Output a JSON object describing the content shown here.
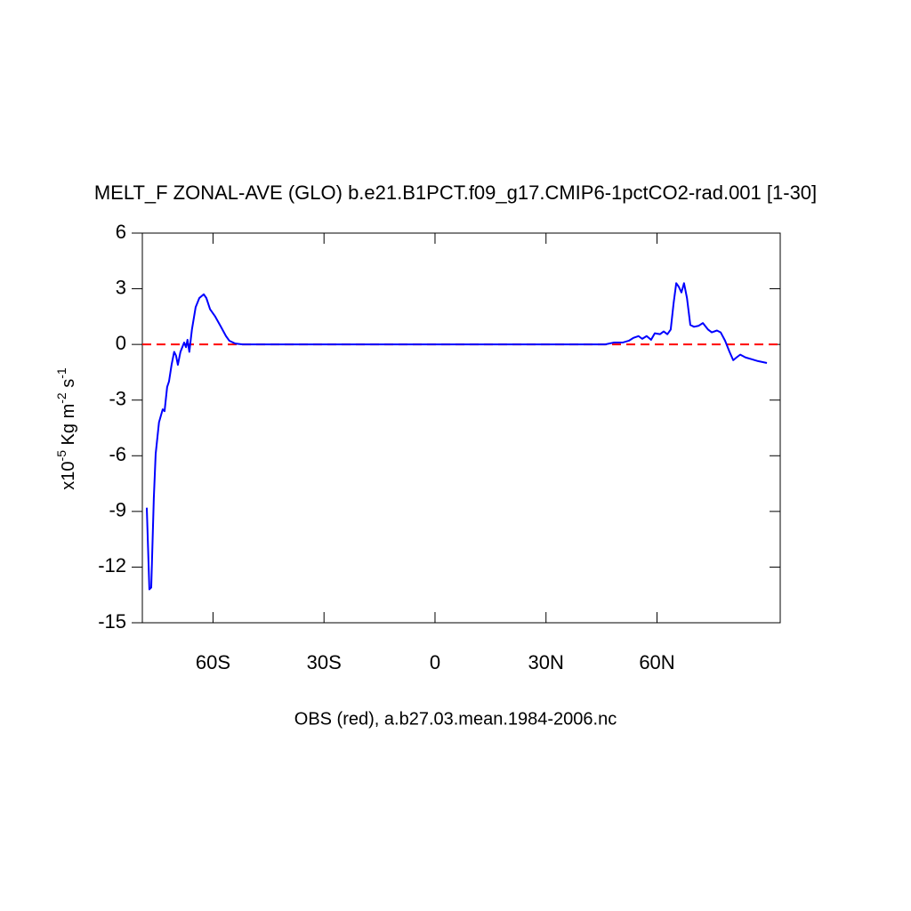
{
  "chart_data": {
    "type": "line",
    "title": "MELT_F ZONAL-AVE (GLO) b.e21.B1PCT.f09_g17.CMIP6-1pctCO2-rad.001 [1-30]",
    "xlabel": "OBS (red), a.b27.03.mean.1984-2006.nc",
    "ylabel": [
      {
        "text": "x10"
      },
      {
        "text": "-5",
        "sup": true
      },
      {
        "text": " Kg m"
      },
      {
        "text": "-2",
        "sup": true
      },
      {
        "text": " s"
      },
      {
        "text": "-1",
        "sup": true
      }
    ],
    "xlim": [
      -79.1,
      93.3
    ],
    "ylim": [
      -15,
      6
    ],
    "xticks": [
      {
        "value": -60,
        "label": "60S"
      },
      {
        "value": -30,
        "label": "30S"
      },
      0,
      {
        "value": 30,
        "label": "30N"
      },
      {
        "value": 60,
        "label": "60N"
      }
    ],
    "yticks": [
      6,
      3,
      0,
      -3,
      -6,
      -9,
      -12,
      -15
    ],
    "reference_line": {
      "value": 0,
      "color": "#ff0000"
    },
    "series": [
      {
        "color": "#0000ff",
        "x": [
          -77.9,
          -77.2,
          -76.7,
          -76,
          -75.5,
          -74.6,
          -73.6,
          -73.1,
          -72.4,
          -71.9,
          -71.2,
          -70.5,
          -70,
          -69.5,
          -68.8,
          -67.8,
          -67.3,
          -66.9,
          -66.4,
          -65.7,
          -64.7,
          -63.7,
          -62.5,
          -61.8,
          -60.8,
          -59.4,
          -58,
          -56.5,
          -55.6,
          -54,
          -52,
          -40,
          0,
          30,
          46,
          48.3,
          50.7,
          52.4,
          53.6,
          55,
          56,
          57.2,
          58.4,
          59.4,
          60.8,
          61.8,
          62.8,
          63.7,
          64.5,
          65.2,
          65.9,
          66.6,
          67.3,
          68.1,
          69,
          70,
          71.2,
          72.4,
          73.8,
          74.8,
          76.2,
          77.2,
          78.4,
          79.6,
          80.6,
          81.5,
          82.5,
          83.9,
          85.6,
          87.3,
          89.7
        ],
        "values": [
          -8.8,
          -13.2,
          -13.1,
          -8.3,
          -5.9,
          -4.2,
          -3.5,
          -3.6,
          -2.3,
          -2.0,
          -1.1,
          -0.4,
          -0.6,
          -1.1,
          -0.4,
          0.1,
          -0.15,
          0.25,
          -0.4,
          0.8,
          2.0,
          2.5,
          2.7,
          2.5,
          1.9,
          1.5,
          1.0,
          0.45,
          0.2,
          0.05,
          0,
          0,
          0,
          0,
          0,
          0.1,
          0.1,
          0.2,
          0.35,
          0.45,
          0.3,
          0.45,
          0.25,
          0.6,
          0.55,
          0.7,
          0.55,
          0.8,
          2.25,
          3.3,
          3.1,
          2.8,
          3.3,
          2.5,
          1.05,
          0.95,
          1.0,
          1.15,
          0.8,
          0.65,
          0.75,
          0.65,
          0.2,
          -0.4,
          -0.85,
          -0.7,
          -0.55,
          -0.7,
          -0.8,
          -0.9,
          -1.0
        ]
      }
    ]
  }
}
